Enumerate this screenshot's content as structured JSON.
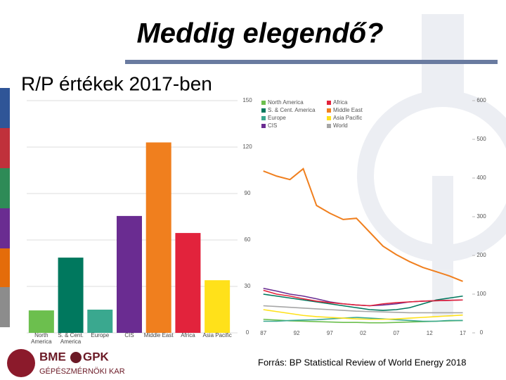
{
  "slide": {
    "title": "Meddig elegendő?",
    "subtitle": "R/P értékek 2017-ben",
    "source": "Forrás: BP Statistical Review of World Energy 2018",
    "logo": [
      "BME",
      "GPK",
      "GÉPÉSZMÉRNÖKI KAR"
    ]
  },
  "chart_data": [
    {
      "type": "bar",
      "categories": [
        "North America",
        "S. & Cent. America",
        "Europe",
        "CIS",
        "Middle East",
        "Africa",
        "Asia Pacific"
      ],
      "values": [
        14.5,
        48.6,
        15,
        75.5,
        123,
        64.5,
        34
      ],
      "colors": [
        "#6cbf4e",
        "#00785e",
        "#3aa88f",
        "#6a2c91",
        "#f07f1e",
        "#e2233c",
        "#ffe11a"
      ],
      "ylim": [
        0,
        150
      ],
      "yticks": [
        0,
        30,
        60,
        90,
        120,
        150
      ],
      "grid": true
    },
    {
      "type": "line",
      "x": [
        1987,
        1989,
        1991,
        1993,
        1995,
        1997,
        1999,
        2001,
        2003,
        2005,
        2007,
        2009,
        2011,
        2013,
        2015,
        2017
      ],
      "xlim": [
        1986.5,
        2018
      ],
      "xticks": [
        {
          "value": 1987,
          "label": "87"
        },
        {
          "value": 1992,
          "label": "92"
        },
        {
          "value": 1997,
          "label": "97"
        },
        {
          "value": 2002,
          "label": "02"
        },
        {
          "value": 2007,
          "label": "07"
        },
        {
          "value": 2012,
          "label": "12"
        },
        {
          "value": 2017,
          "label": "17"
        }
      ],
      "ylim": [
        0,
        600
      ],
      "yticks": [
        0,
        100,
        200,
        300,
        400,
        500,
        600
      ],
      "series": [
        {
          "name": "North America",
          "color": "#6cbf4e",
          "values": [
            35,
            33,
            31,
            30,
            29,
            28,
            27,
            27,
            26,
            26,
            27,
            28,
            29,
            30,
            31,
            32
          ]
        },
        {
          "name": "S. & Cent. America",
          "color": "#00785e",
          "values": [
            100,
            95,
            90,
            85,
            80,
            75,
            70,
            65,
            60,
            58,
            60,
            65,
            75,
            85,
            90,
            95
          ]
        },
        {
          "name": "Europe",
          "color": "#3aa88f",
          "values": [
            30,
            30,
            32,
            33,
            34,
            36,
            38,
            40,
            38,
            36,
            34,
            32,
            30,
            30,
            32,
            32
          ]
        },
        {
          "name": "CIS",
          "color": "#6a2c91",
          "values": [
            115,
            108,
            100,
            95,
            88,
            80,
            75,
            72,
            70,
            72,
            75,
            80,
            82,
            83,
            84,
            85
          ]
        },
        {
          "name": "Africa",
          "color": "#e2233c",
          "values": [
            110,
            100,
            95,
            88,
            82,
            78,
            75,
            72,
            70,
            75,
            78,
            80,
            82,
            83,
            84,
            85
          ]
        },
        {
          "name": "Middle East",
          "color": "#f07f1e",
          "values": [
            418,
            405,
            396,
            424,
            329,
            309,
            293,
            296,
            260,
            224,
            202,
            184,
            169,
            158,
            147,
            133
          ]
        },
        {
          "name": "Asia Pacific",
          "color": "#ffe11a",
          "values": [
            60,
            55,
            50,
            45,
            42,
            40,
            38,
            36,
            35,
            35,
            36,
            38,
            40,
            42,
            44,
            46
          ]
        },
        {
          "name": "World",
          "color": "#a6a6a6",
          "values": [
            70,
            68,
            66,
            64,
            62,
            60,
            58,
            56,
            55,
            54,
            53,
            52,
            52,
            52,
            52,
            52
          ]
        }
      ]
    }
  ]
}
